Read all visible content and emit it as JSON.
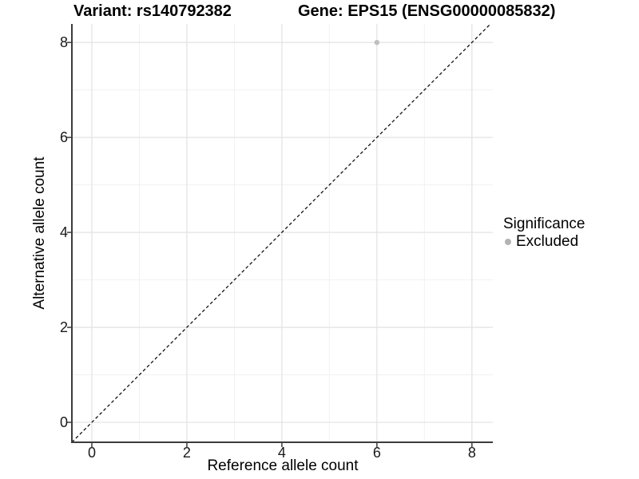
{
  "chart_data": {
    "type": "scatter",
    "titles": {
      "variant": "Variant: rs140792382",
      "gene": "Gene: EPS15 (ENSG00000085832)"
    },
    "xlabel": "Reference allele count",
    "ylabel": "Alternative allele count",
    "xlim": [
      -0.42,
      8.44
    ],
    "ylim": [
      -0.42,
      8.39
    ],
    "xticks": [
      0,
      2,
      4,
      6,
      8
    ],
    "yticks": [
      0,
      2,
      4,
      6,
      8
    ],
    "xminor": [
      1,
      3,
      5,
      7
    ],
    "yminor": [
      1,
      3,
      5,
      7
    ],
    "grid": "major+minor",
    "series": [
      {
        "name": "Excluded",
        "color": "#bfbfbf",
        "points": [
          {
            "x": 6,
            "y": 8
          }
        ]
      }
    ],
    "reference_line": {
      "kind": "identity y=x",
      "style": "dashed",
      "color": "#000000"
    },
    "legend": {
      "title": "Significance",
      "position": "right",
      "items": [
        {
          "label": "Excluded",
          "color": "#b3b3b3"
        }
      ]
    },
    "colors": {
      "background": "#ffffff",
      "grid_major": "#e4e4e4",
      "grid_minor": "#f1f1f1",
      "axis": "#3c3c3c",
      "tick_text": "#1a1a1a",
      "title_text": "#000000"
    }
  }
}
